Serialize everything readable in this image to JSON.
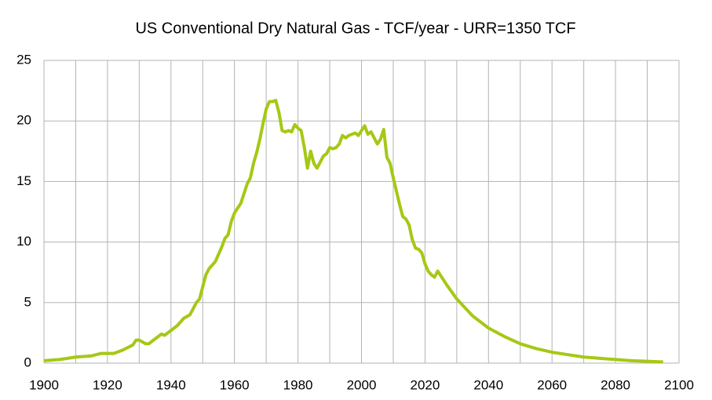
{
  "chart_data": {
    "type": "line",
    "title": "US Conventional Dry Natural Gas - TCF/year - URR=1350 TCF",
    "x": [
      1900,
      1905,
      1910,
      1915,
      1918,
      1920,
      1922,
      1925,
      1928,
      1929,
      1930,
      1932,
      1933,
      1935,
      1937,
      1938,
      1940,
      1942,
      1944,
      1946,
      1948,
      1949,
      1950,
      1951,
      1952,
      1954,
      1956,
      1957,
      1958,
      1959,
      1960,
      1962,
      1963,
      1964,
      1965,
      1966,
      1967,
      1968,
      1969,
      1970,
      1971,
      1972,
      1973,
      1974,
      1975,
      1976,
      1977,
      1978,
      1979,
      1980,
      1981,
      1982,
      1983,
      1984,
      1985,
      1986,
      1987,
      1988,
      1989,
      1990,
      1991,
      1992,
      1993,
      1994,
      1995,
      1996,
      1997,
      1998,
      1999,
      2000,
      2001,
      2002,
      2003,
      2004,
      2005,
      2006,
      2007,
      2008,
      2009,
      2010,
      2011,
      2012,
      2013,
      2014,
      2015,
      2016,
      2017,
      2018,
      2019,
      2020,
      2021,
      2022,
      2023,
      2024,
      2025,
      2027,
      2030,
      2035,
      2040,
      2045,
      2050,
      2055,
      2060,
      2065,
      2070,
      2075,
      2080,
      2085,
      2090,
      2095
    ],
    "series": [
      {
        "name": "US Conventional Dry Natural Gas",
        "color": "#a5c815",
        "values": [
          0.2,
          0.3,
          0.5,
          0.6,
          0.8,
          0.8,
          0.8,
          1.1,
          1.5,
          1.9,
          1.9,
          1.6,
          1.6,
          2.0,
          2.4,
          2.3,
          2.7,
          3.1,
          3.7,
          4.0,
          5.0,
          5.3,
          6.3,
          7.3,
          7.8,
          8.4,
          9.6,
          10.3,
          10.6,
          11.7,
          12.4,
          13.2,
          14.0,
          14.8,
          15.3,
          16.5,
          17.4,
          18.5,
          19.8,
          21.0,
          21.6,
          21.6,
          21.7,
          20.7,
          19.2,
          19.1,
          19.2,
          19.1,
          19.7,
          19.4,
          19.2,
          17.8,
          16.1,
          17.5,
          16.5,
          16.1,
          16.6,
          17.1,
          17.3,
          17.8,
          17.7,
          17.8,
          18.1,
          18.8,
          18.6,
          18.8,
          18.9,
          19.0,
          18.8,
          19.2,
          19.6,
          18.9,
          19.1,
          18.6,
          18.1,
          18.5,
          19.3,
          17.0,
          16.5,
          15.3,
          14.2,
          13.1,
          12.1,
          11.9,
          11.4,
          10.2,
          9.5,
          9.4,
          9.1,
          8.2,
          7.6,
          7.3,
          7.1,
          7.6,
          7.2,
          6.4,
          5.3,
          3.9,
          2.9,
          2.2,
          1.6,
          1.2,
          0.9,
          0.7,
          0.5,
          0.4,
          0.3,
          0.2,
          0.15,
          0.1
        ]
      }
    ],
    "xlim": [
      1900,
      2100
    ],
    "xticks": [
      1900,
      1920,
      1940,
      1960,
      1980,
      2000,
      2020,
      2040,
      2060,
      2080,
      2100
    ],
    "xminor_ticks": [
      1910,
      1930,
      1950,
      1970,
      1990,
      2010,
      2030,
      2050,
      2070,
      2090
    ],
    "ylim": [
      0,
      25
    ],
    "yticks": [
      0,
      5,
      10,
      15,
      20,
      25
    ],
    "grid": true
  }
}
